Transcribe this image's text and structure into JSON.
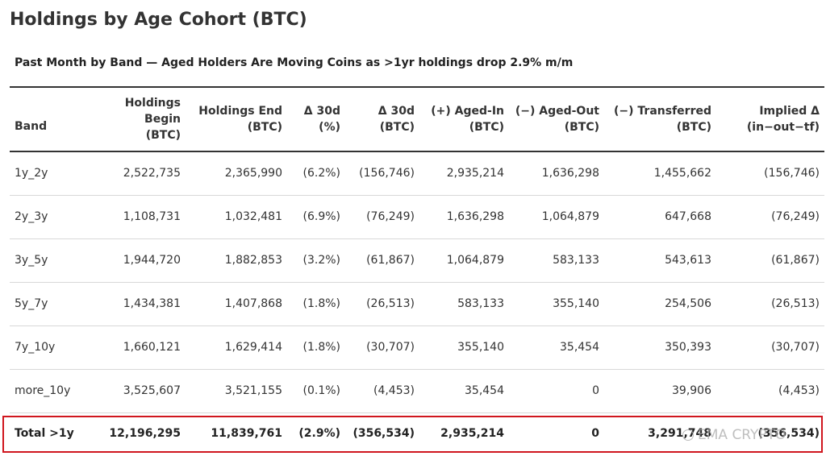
{
  "chart_data": {
    "type": "table",
    "title": "Holdings by Age Cohort (BTC)",
    "subtitle": "Past Month by Band — Aged Holders Are Moving Coins as >1yr holdings drop 2.9% m/m",
    "columns": [
      [
        "Band"
      ],
      [
        "Holdings Begin",
        "(BTC)"
      ],
      [
        "Holdings End",
        "(BTC)"
      ],
      [
        "Δ 30d",
        "(%)"
      ],
      [
        "Δ 30d",
        "(BTC)"
      ],
      [
        "(+) Aged-In",
        "(BTC)"
      ],
      [
        "(−) Aged-Out",
        "(BTC)"
      ],
      [
        "(−) Transferred",
        "(BTC)"
      ],
      [
        "Implied Δ",
        "(in−out−tf)"
      ]
    ],
    "rows": [
      [
        "1y_2y",
        "2,522,735",
        "2,365,990",
        "(6.2%)",
        "(156,746)",
        "2,935,214",
        "1,636,298",
        "1,455,662",
        "(156,746)"
      ],
      [
        "2y_3y",
        "1,108,731",
        "1,032,481",
        "(6.9%)",
        "(76,249)",
        "1,636,298",
        "1,064,879",
        "647,668",
        "(76,249)"
      ],
      [
        "3y_5y",
        "1,944,720",
        "1,882,853",
        "(3.2%)",
        "(61,867)",
        "1,064,879",
        "583,133",
        "543,613",
        "(61,867)"
      ],
      [
        "5y_7y",
        "1,434,381",
        "1,407,868",
        "(1.8%)",
        "(26,513)",
        "583,133",
        "355,140",
        "254,506",
        "(26,513)"
      ],
      [
        "7y_10y",
        "1,660,121",
        "1,629,414",
        "(1.8%)",
        "(30,707)",
        "355,140",
        "35,454",
        "350,393",
        "(30,707)"
      ],
      [
        "more_10y",
        "3,525,607",
        "3,521,155",
        "(0.1%)",
        "(4,453)",
        "35,454",
        "0",
        "39,906",
        "(4,453)"
      ]
    ],
    "total": [
      "Total >1y",
      "12,196,295",
      "11,839,761",
      "(2.9%)",
      "(356,534)",
      "2,935,214",
      "0",
      "3,291,748",
      "(356,534)"
    ]
  },
  "highlight_color": "#d0161e",
  "watermark": {
    "icon": "bird-icon",
    "text": "EMA CRYPTO"
  }
}
